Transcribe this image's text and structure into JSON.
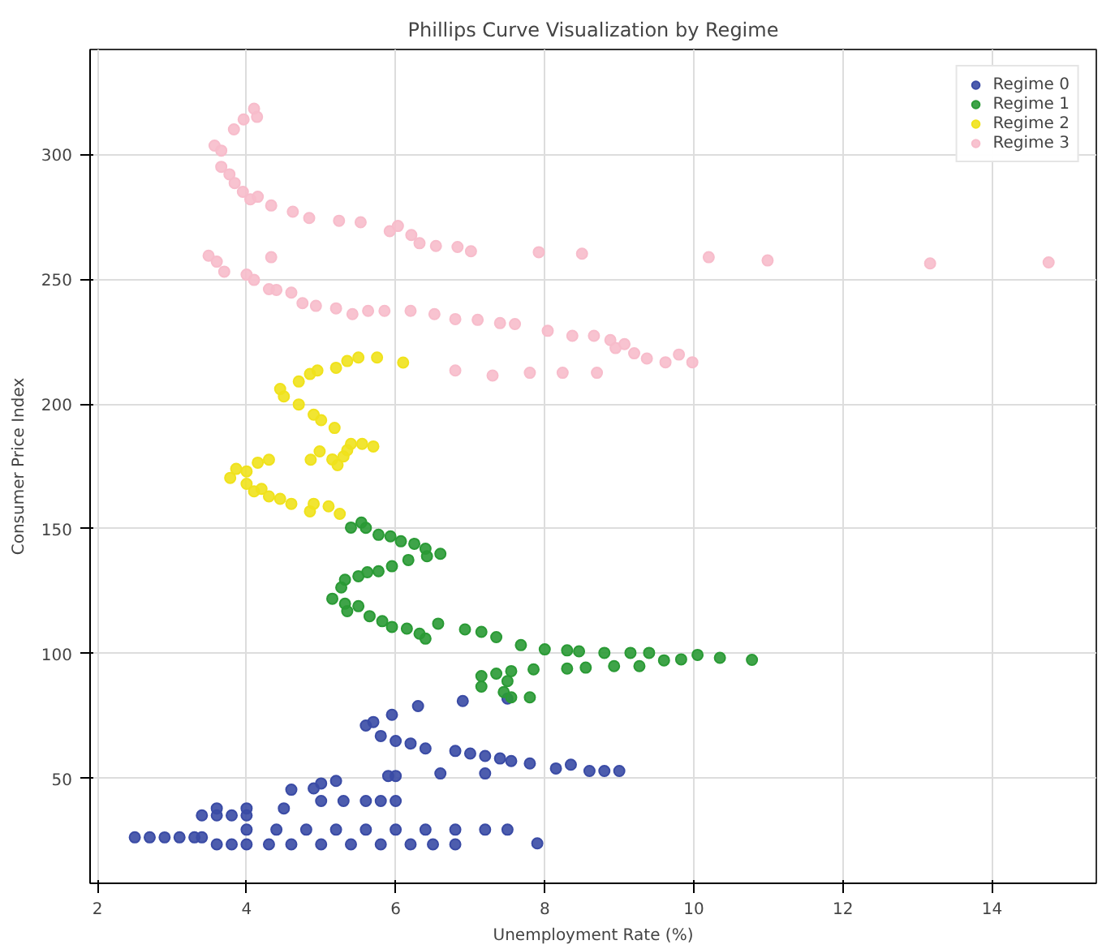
{
  "chart_data": {
    "type": "scatter",
    "title": "Phillips Curve Visualization by Regime",
    "xlabel": "Unemployment Rate (%)",
    "ylabel": "Consumer Price Index",
    "xlim": [
      1.9,
      15.4
    ],
    "ylim": [
      8,
      342
    ],
    "xticks": [
      2,
      4,
      6,
      8,
      10,
      12,
      14
    ],
    "yticks": [
      50,
      100,
      150,
      200,
      250,
      300
    ],
    "grid": true,
    "legend": "top right",
    "marker": "circle",
    "series": [
      {
        "name": "Regime 0",
        "color": "#3a4ba5",
        "x": [
          2.5,
          2.7,
          2.9,
          3.1,
          3.3,
          3.4,
          3.6,
          3.8,
          4.0,
          4.3,
          4.6,
          5.0,
          5.4,
          5.8,
          6.2,
          6.5,
          6.8,
          7.9,
          4.0,
          4.4,
          4.8,
          5.2,
          5.6,
          6.0,
          6.4,
          6.8,
          7.2,
          7.5,
          3.4,
          3.6,
          3.8,
          4.0,
          3.6,
          4.0,
          4.5,
          4.6,
          4.9,
          5.0,
          5.2,
          5.0,
          5.3,
          5.6,
          5.8,
          6.0,
          5.9,
          6.0,
          6.6,
          7.2,
          5.6,
          5.7,
          5.8,
          5.95,
          6.0,
          6.2,
          6.3,
          6.4,
          6.8,
          7.0,
          7.2,
          7.4,
          7.55,
          7.8,
          8.15,
          8.35,
          8.6,
          8.8,
          9.0,
          6.9,
          7.5
        ],
        "values": [
          26.4,
          26.4,
          26.4,
          26.4,
          26.4,
          26.4,
          23.6,
          23.6,
          23.6,
          23.6,
          23.6,
          23.6,
          23.6,
          23.6,
          23.6,
          23.6,
          23.6,
          24,
          29.5,
          29.5,
          29.5,
          29.5,
          29.5,
          29.5,
          29.5,
          29.5,
          29.5,
          29.5,
          35.2,
          35.2,
          35.2,
          35.2,
          38,
          38,
          38,
          45.5,
          46,
          48,
          49,
          41,
          41,
          41,
          41,
          41,
          51,
          51,
          52,
          52,
          71.2,
          72.6,
          67,
          75.5,
          65,
          64,
          79,
          62,
          61,
          60,
          59,
          58,
          57,
          56,
          54,
          55.5,
          53,
          53,
          53,
          81,
          82
        ]
      },
      {
        "name": "Regime 1",
        "color": "#2a9a35",
        "x": [
          5.4,
          5.54,
          5.6,
          5.77,
          5.93,
          6.07,
          6.25,
          6.4,
          6.42,
          6.6,
          6.17,
          5.95,
          5.77,
          5.62,
          5.5,
          5.32,
          5.27,
          5.15,
          5.32,
          5.35,
          5.5,
          5.65,
          5.82,
          5.95,
          6.15,
          6.32,
          6.4,
          6.57,
          6.93,
          7.15,
          7.35,
          7.68,
          8.0,
          8.3,
          8.46,
          8.8,
          9.15,
          9.4,
          9.6,
          9.83,
          10.05,
          10.35,
          10.78,
          9.27,
          8.93,
          8.55,
          8.3,
          7.85,
          7.55,
          7.35,
          7.15,
          7.15,
          7.5,
          7.45,
          7.8,
          7.55
        ],
        "values": [
          150.5,
          152.5,
          150.4,
          147.6,
          147,
          145,
          144,
          142,
          139,
          140,
          137.5,
          135,
          133,
          132.6,
          131,
          129.6,
          126.5,
          122,
          120,
          117,
          119,
          115,
          113,
          110.7,
          110,
          108,
          106,
          112,
          109.7,
          108.7,
          106.6,
          103.4,
          101.7,
          101.3,
          100.9,
          100.3,
          100.3,
          100.3,
          97.3,
          97.7,
          99.5,
          98.3,
          97.5,
          95,
          95,
          94.4,
          94,
          93.7,
          93,
          92,
          91,
          86.8,
          89,
          84.6,
          82.5,
          82.5
        ]
      },
      {
        "name": "Regime 2",
        "color": "#f0e21c",
        "x": [
          4.98,
          5.15,
          5.22,
          5.3,
          5.4,
          5.55,
          5.7,
          5.35,
          5.18,
          5.0,
          4.9,
          4.7,
          4.5,
          4.45,
          4.7,
          4.85,
          4.95,
          5.2,
          5.35,
          5.5,
          5.75,
          6.1,
          3.78,
          3.86,
          4.0,
          4.1,
          4.2,
          4.3,
          4.45,
          4.6,
          4.9,
          5.1,
          5.25,
          4.85,
          4.15,
          4.3,
          4.86,
          4.0
        ],
        "values": [
          181,
          177.8,
          175.5,
          179,
          184,
          184,
          183,
          181.5,
          190.4,
          193.5,
          195.7,
          199.8,
          203,
          206,
          209,
          212,
          213.4,
          214.5,
          217.2,
          218.6,
          218.6,
          216.6,
          170.4,
          174,
          168,
          165,
          166,
          163,
          162,
          160,
          160,
          159,
          156,
          157,
          176.5,
          177.7,
          177.7,
          173
        ]
      },
      {
        "name": "Regime 3",
        "color": "#f7bccb",
        "x": [
          4.1,
          4.14,
          3.96,
          3.83,
          3.57,
          3.66,
          3.66,
          3.77,
          3.84,
          3.95,
          4.05,
          4.15,
          4.33,
          4.62,
          4.84,
          5.24,
          5.53,
          5.92,
          6.03,
          6.21,
          6.32,
          6.54,
          6.83,
          7.01,
          7.92,
          8.5,
          10.2,
          10.99,
          13.17,
          14.76,
          3.49,
          3.6,
          4.33,
          3.7,
          4.0,
          4.1,
          4.3,
          4.4,
          4.6,
          4.75,
          4.93,
          5.2,
          5.42,
          5.63,
          5.85,
          6.2,
          6.52,
          6.8,
          7.1,
          7.4,
          7.6,
          8.04,
          8.37,
          8.66,
          8.88,
          8.95,
          9.2,
          9.37,
          9.62,
          9.98,
          9.8,
          9.07,
          8.24,
          8.7,
          7.8,
          7.3,
          6.8
        ],
        "values": [
          318.3,
          315,
          314,
          310,
          303.5,
          301.5,
          295,
          292,
          288.5,
          285,
          282,
          283,
          279.5,
          277,
          274.5,
          273.4,
          272.8,
          269.2,
          271.3,
          267.7,
          264.4,
          263.3,
          262.9,
          261.2,
          260.8,
          260.2,
          258.8,
          257.5,
          256.3,
          256.7,
          259.4,
          257,
          258.8,
          253,
          251.8,
          249.7,
          246,
          245.7,
          244.6,
          240.4,
          239.3,
          238.3,
          236,
          237.3,
          237.3,
          237.3,
          236,
          234,
          233.7,
          232.4,
          232,
          229.3,
          227.3,
          227.3,
          225.6,
          222.4,
          220.3,
          218.2,
          216.7,
          216.7,
          219.8,
          224,
          212.5,
          212.5,
          212.5,
          211.4,
          213.4
        ]
      }
    ]
  }
}
